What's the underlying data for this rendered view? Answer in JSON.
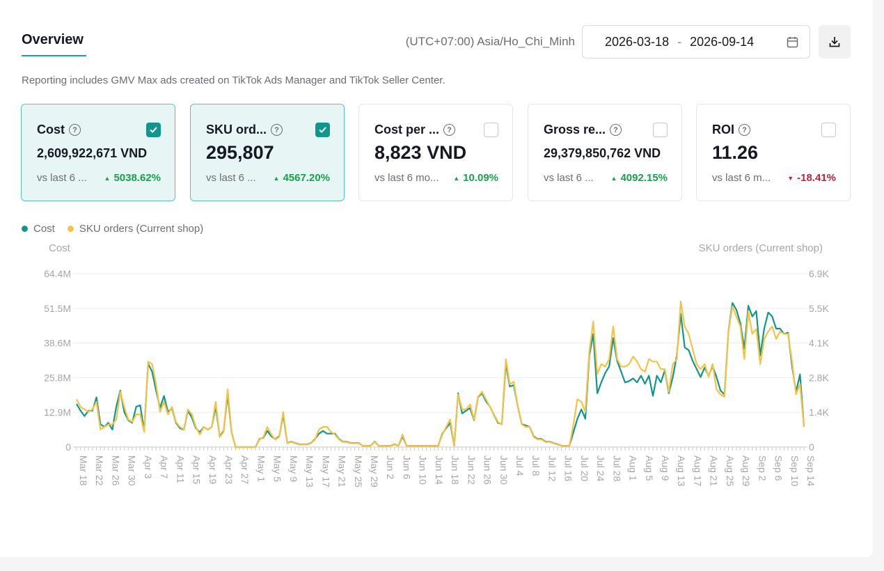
{
  "header": {
    "tab_label": "Overview",
    "timezone": "(UTC+07:00) Asia/Ho_Chi_Minh",
    "date_start": "2026-03-18",
    "date_separator": "-",
    "date_end": "2026-09-14"
  },
  "note": "Reporting includes GMV Max ads created on TikTok Ads Manager and TikTok Seller Center.",
  "cards": [
    {
      "title": "Cost",
      "value": "2,609,922,671 VND",
      "compare": "vs last 6 ...",
      "delta": "5038.62%",
      "direction": "up",
      "checked": true
    },
    {
      "title": "SKU ord...",
      "value": "295,807",
      "compare": "vs last 6 ...",
      "delta": "4567.20%",
      "direction": "up",
      "checked": true
    },
    {
      "title": "Cost per ...",
      "value": "8,823 VND",
      "compare": "vs last 6 mo...",
      "delta": "10.09%",
      "direction": "up",
      "checked": false
    },
    {
      "title": "Gross re...",
      "value": "29,379,850,762 VND",
      "compare": "vs last 6 ...",
      "delta": "4092.15%",
      "direction": "up",
      "checked": false
    },
    {
      "title": "ROI",
      "value": "11.26",
      "compare": "vs last 6 m...",
      "delta": "-18.41%",
      "direction": "down",
      "checked": false
    }
  ],
  "colors": {
    "cost": "#11968d",
    "sku": "#f5c342",
    "up": "#16a34a",
    "down": "#c0243a"
  },
  "icons": {
    "help": "question-circle-icon",
    "check": "checkmark-icon",
    "calendar": "calendar-icon",
    "download": "download-icon"
  },
  "chart_data": {
    "type": "line",
    "legend": [
      "Cost",
      "SKU orders (Current shop)"
    ],
    "legend_position": "top-left",
    "y_left_title": "Cost",
    "y_right_title": "SKU orders (Current shop)",
    "y_left_ticks": [
      "0",
      "12.9M",
      "25.8M",
      "38.6M",
      "51.5M",
      "64.4M"
    ],
    "y_right_ticks": [
      "0",
      "1.4K",
      "2.8K",
      "4.1K",
      "5.5K",
      "6.9K"
    ],
    "ylim_left": [
      0,
      64400000
    ],
    "ylim_right": [
      0,
      6900
    ],
    "x_tick_labels": [
      "Mar 18",
      "Mar 22",
      "Mar 26",
      "Mar 30",
      "Apr 3",
      "Apr 7",
      "Apr 11",
      "Apr 15",
      "Apr 19",
      "Apr 23",
      "Apr 27",
      "May 1",
      "May 5",
      "May 9",
      "May 13",
      "May 17",
      "May 21",
      "May 25",
      "May 29",
      "Jun 2",
      "Jun 6",
      "Jun 10",
      "Jun 14",
      "Jun 18",
      "Jun 22",
      "Jun 26",
      "Jun 30",
      "Jul 4",
      "Jul 8",
      "Jul 12",
      "Jul 16",
      "Jul 20",
      "Jul 24",
      "Jul 28",
      "Aug 1",
      "Aug 5",
      "Aug 9",
      "Aug 13",
      "Aug 17",
      "Aug 21",
      "Aug 25",
      "Aug 29",
      "Sep 2",
      "Sep 6",
      "Sep 10",
      "Sep 14"
    ],
    "grid": true,
    "series": [
      {
        "name": "Cost",
        "values_millions": [
          16,
          13.5,
          11.5,
          13.5,
          13.5,
          18.5,
          8.5,
          7.5,
          9,
          6.5,
          15,
          21,
          13,
          10,
          9,
          15,
          15.5,
          6,
          31,
          28,
          21,
          14.5,
          19,
          13,
          14.5,
          9,
          7,
          6.5,
          13.5,
          11,
          7,
          5.5,
          7.5,
          6.5,
          7.5,
          15,
          4,
          6,
          19.5,
          5.5,
          0,
          0,
          0,
          0,
          0,
          0,
          3,
          3.5,
          6,
          4,
          3,
          4,
          12,
          1.5,
          2,
          1.5,
          1,
          1,
          1,
          1.5,
          3,
          5,
          6,
          5,
          5,
          5,
          3,
          2,
          2,
          1.5,
          1.5,
          1.5,
          0.5,
          0.5,
          0.5,
          2,
          0.5,
          0.5,
          0.5,
          0.5,
          1,
          0.5,
          4,
          0.5,
          0.5,
          0.5,
          0.5,
          0.5,
          0.5,
          0.5,
          0.5,
          0.5,
          5,
          7,
          9,
          0.5,
          20,
          12.5,
          13.5,
          14.5,
          10,
          18.5,
          20,
          17,
          15,
          12,
          9,
          8.5,
          31,
          22.5,
          23,
          15,
          8.5,
          8,
          7.5,
          4,
          3,
          3,
          2,
          2,
          1.5,
          1,
          0.5,
          0.5,
          0.5,
          5.5,
          10.5,
          14,
          10.5,
          34,
          42,
          20,
          24,
          27.5,
          30,
          40.5,
          32,
          28,
          24,
          24.5,
          25.5,
          24,
          26.5,
          23.5,
          26.5,
          19,
          26.5,
          24,
          28.5,
          20,
          26,
          34,
          49.5,
          37,
          36,
          32,
          29,
          26,
          29.5,
          26.5,
          30,
          26,
          21,
          19.5,
          43,
          53.5,
          51,
          46,
          36.5,
          52.5,
          48.5,
          50.5,
          34,
          44,
          50,
          48.5,
          44,
          44,
          42,
          42.5,
          30,
          20.5,
          27,
          7.5
        ]
      },
      {
        "name": "SKU orders (Current shop)",
        "values_thousands": [
          1.9,
          1.6,
          1.5,
          1.4,
          1.5,
          1.8,
          0.7,
          0.8,
          0.9,
          0.9,
          1.1,
          2.2,
          1.6,
          1.1,
          1,
          1.3,
          1.3,
          0.6,
          3.4,
          3.3,
          2.5,
          1.4,
          1.8,
          1.3,
          1.6,
          1,
          0.8,
          0.7,
          1.5,
          1.3,
          0.8,
          0.5,
          0.8,
          0.7,
          0.8,
          1.8,
          0.4,
          0.6,
          2.3,
          0.6,
          0,
          0,
          0,
          0,
          0,
          0,
          0.3,
          0.4,
          0.8,
          0.5,
          0.3,
          0.4,
          1.4,
          0.15,
          0.2,
          0.15,
          0.1,
          0.1,
          0.1,
          0.15,
          0.3,
          0.7,
          0.8,
          0.8,
          0.6,
          0.5,
          0.3,
          0.2,
          0.2,
          0.15,
          0.15,
          0.15,
          0.05,
          0.05,
          0.05,
          0.2,
          0.05,
          0.05,
          0.05,
          0.05,
          0.1,
          0.05,
          0.5,
          0.05,
          0.05,
          0.05,
          0.05,
          0.05,
          0.05,
          0.05,
          0.05,
          0.05,
          0.5,
          0.8,
          1.1,
          0.05,
          2.1,
          1.5,
          1.5,
          1.7,
          1.1,
          2,
          2.2,
          1.9,
          1.6,
          1.3,
          1,
          0.9,
          3.5,
          2.5,
          2.6,
          1.6,
          0.9,
          0.8,
          0.8,
          0.4,
          0.3,
          0.3,
          0.2,
          0.2,
          0.15,
          0.1,
          0.05,
          0.05,
          0.05,
          0.9,
          1.9,
          1.8,
          1.4,
          3.8,
          5,
          2.9,
          3.3,
          3.2,
          3.5,
          4.8,
          3.5,
          3.2,
          3.2,
          3.3,
          3.6,
          3.4,
          3.1,
          3,
          3.5,
          3.4,
          3.4,
          3.1,
          3.1,
          2.2,
          3.3,
          3.5,
          5.8,
          4.8,
          4.5,
          3.9,
          3.3,
          3.1,
          3.3,
          2.8,
          3.3,
          2.3,
          2.1,
          2,
          4.6,
          5.6,
          5.2,
          4.8,
          3.5,
          5.4,
          4.5,
          4.7,
          3.3,
          4.3,
          4.6,
          4.8,
          4.3,
          4.6,
          4.5,
          4.5,
          3.4,
          2.1,
          2.5,
          0.8
        ]
      }
    ]
  }
}
